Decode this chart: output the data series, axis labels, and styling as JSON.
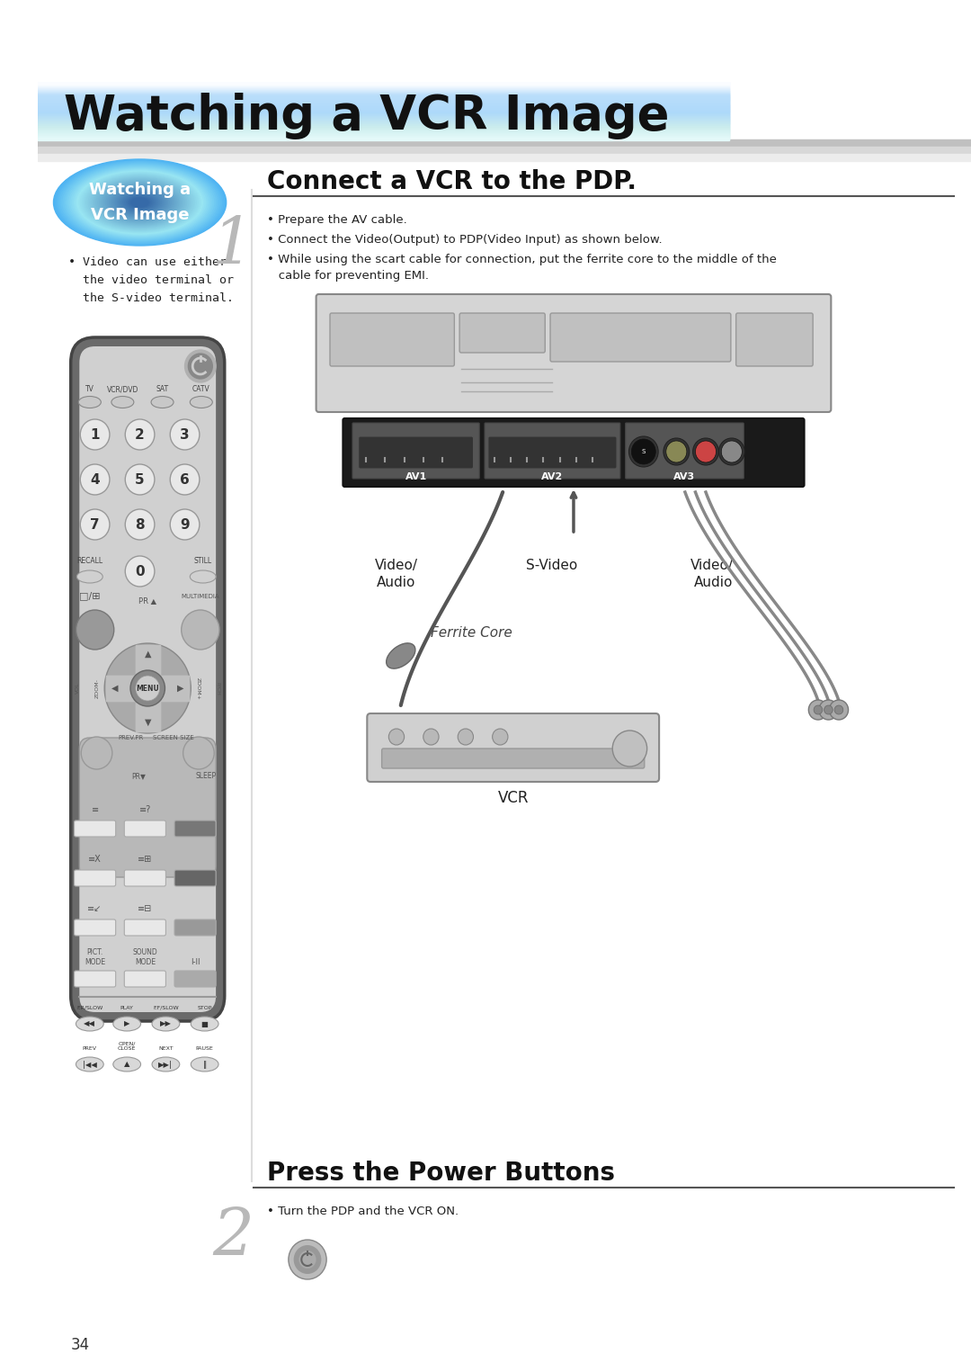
{
  "bg_color": "#ffffff",
  "header_title": "Watching a VCR Image",
  "header_title_fontsize": 38,
  "sidebar_title_line1": "Watching a",
  "sidebar_title_line2": "VCR Image",
  "sidebar_text": "• Video can use either\n  the video terminal or\n  the S-video terminal.",
  "step1_number": "1",
  "step1_title": "Connect a VCR to the PDP.",
  "step1_bullets": [
    "• Prepare the AV cable.",
    "• Connect the Video(Output) to PDP(Video Input) as shown below.",
    "• While using the scart cable for connection, put the ferrite core to the middle of the\n   cable for preventing EMI."
  ],
  "step2_number": "2",
  "step2_title": "Press the Power Buttons",
  "step2_bullets": [
    "• Turn the PDP and the VCR ON."
  ],
  "page_number": "34",
  "vcr_label": "VCR",
  "ferrite_label": "Ferrite Core",
  "video_audio_label": "Video/\nAudio",
  "svideo_label": "S-Video"
}
